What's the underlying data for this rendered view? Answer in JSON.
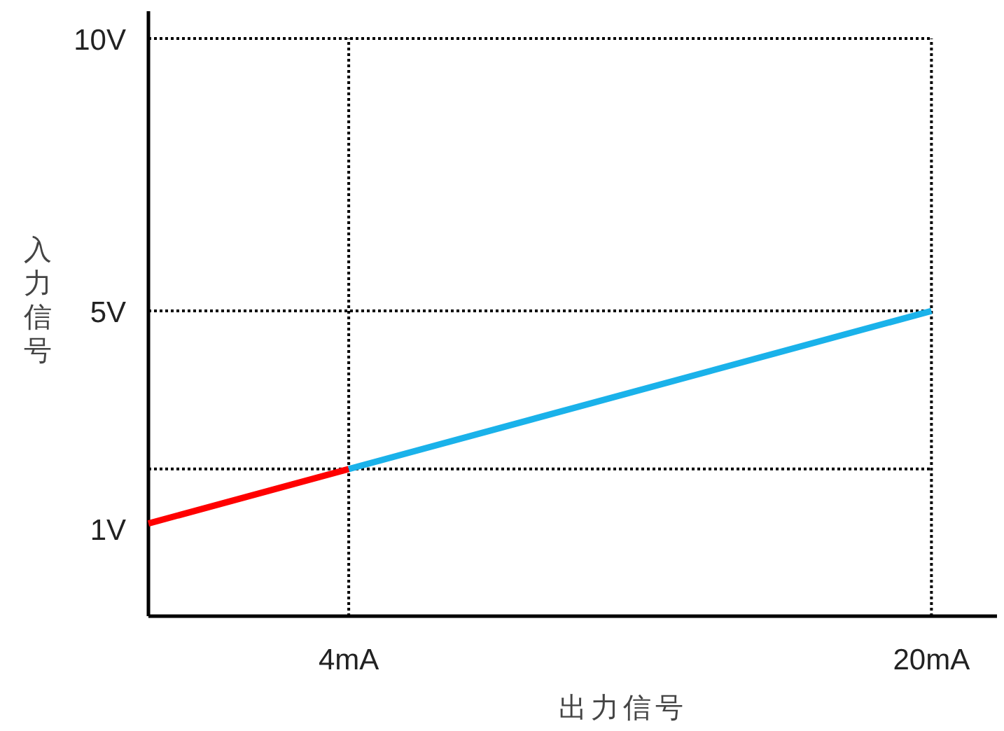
{
  "chart_data": {
    "type": "line",
    "xlabel": "出力信号",
    "ylabel": "入力信号",
    "xlim": [
      -1.5,
      21.8
    ],
    "ylim": [
      -0.6,
      10.5
    ],
    "xticks": [
      {
        "value": 4,
        "label": "4mA"
      },
      {
        "value": 20,
        "label": "20mA"
      }
    ],
    "yticks": [
      {
        "value": 1,
        "label": "1V"
      },
      {
        "value": 5,
        "label": "5V"
      },
      {
        "value": 10,
        "label": "10V"
      }
    ],
    "series": [
      {
        "color": "#ff0000",
        "x": [
          -1.5,
          4
        ],
        "values": [
          1.1,
          2.1
        ]
      },
      {
        "color": "#1ab2ea",
        "x": [
          4,
          20
        ],
        "values": [
          2.1,
          5
        ]
      }
    ],
    "ref_lines": [
      {
        "axis": "y",
        "value": 10,
        "line_style": "dotted"
      },
      {
        "axis": "y",
        "value": 5,
        "line_style": "dotted"
      },
      {
        "axis": "y",
        "value": 2.1,
        "line_style": "dotted"
      },
      {
        "axis": "x",
        "value": 4,
        "line_style": "dotted"
      },
      {
        "axis": "x",
        "value": 20,
        "line_style": "dotted"
      }
    ]
  }
}
